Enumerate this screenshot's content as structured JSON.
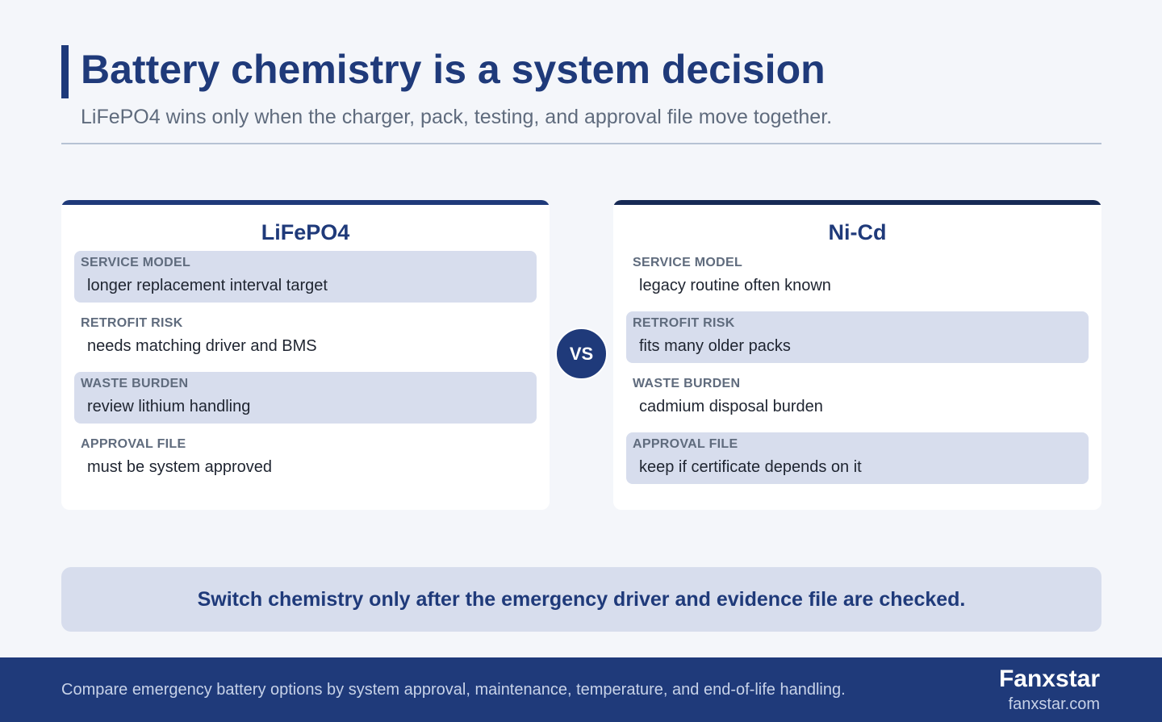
{
  "header": {
    "title": "Battery chemistry is a system decision",
    "subtitle": "LiFePO4 wins only when the charger, pack, testing, and approval file move together."
  },
  "left_card": {
    "title": "LiFePO4",
    "rows": [
      {
        "label": "SERVICE MODEL",
        "value": "longer replacement interval target"
      },
      {
        "label": "RETROFIT RISK",
        "value": "needs matching driver and BMS"
      },
      {
        "label": "WASTE BURDEN",
        "value": "review lithium handling"
      },
      {
        "label": "APPROVAL FILE",
        "value": "must be system approved"
      }
    ]
  },
  "vs_label": "VS",
  "right_card": {
    "title": "Ni-Cd",
    "rows": [
      {
        "label": "SERVICE MODEL",
        "value": "legacy routine often known"
      },
      {
        "label": "RETROFIT RISK",
        "value": "fits many older packs"
      },
      {
        "label": "WASTE BURDEN",
        "value": "cadmium disposal burden"
      },
      {
        "label": "APPROVAL FILE",
        "value": "keep if certificate depends on it"
      }
    ]
  },
  "callout": "Switch chemistry only after the emergency driver and evidence file are checked.",
  "footer": {
    "description": "Compare emergency battery options by system approval, maintenance, temperature, and end-of-life handling.",
    "brand": "Fanxstar",
    "url": "fanxstar.com"
  },
  "colors": {
    "primary": "#1f3a7a",
    "shaded_row": "#d7dded",
    "background": "#f4f6fa"
  }
}
